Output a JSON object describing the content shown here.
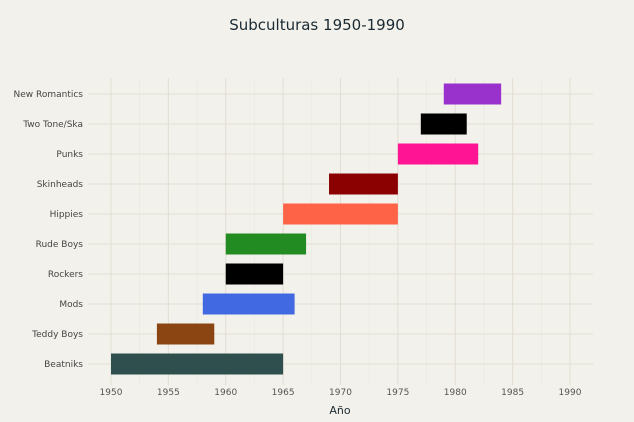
{
  "chart_data": {
    "type": "bar",
    "orientation": "horizontal-range",
    "title": "Subculturas 1950-1990",
    "xlabel": "Año",
    "ylabel": "",
    "xlim": [
      1948,
      1992
    ],
    "xticks": [
      1950,
      1955,
      1960,
      1965,
      1970,
      1975,
      1980,
      1985,
      1990
    ],
    "grid": true,
    "legend": "none",
    "series": [
      {
        "name": "Beatniks",
        "start": 1950,
        "end": 1965,
        "color": "#2f4f4f"
      },
      {
        "name": "Teddy Boys",
        "start": 1954,
        "end": 1959,
        "color": "#8b4513"
      },
      {
        "name": "Mods",
        "start": 1958,
        "end": 1966,
        "color": "#4169e1"
      },
      {
        "name": "Rockers",
        "start": 1960,
        "end": 1965,
        "color": "#000000"
      },
      {
        "name": "Rude Boys",
        "start": 1960,
        "end": 1967,
        "color": "#228b22"
      },
      {
        "name": "Hippies",
        "start": 1965,
        "end": 1975,
        "color": "#ff6347"
      },
      {
        "name": "Skinheads",
        "start": 1969,
        "end": 1975,
        "color": "#8b0000"
      },
      {
        "name": "Punks",
        "start": 1975,
        "end": 1982,
        "color": "#ff1493"
      },
      {
        "name": "Two Tone/Ska",
        "start": 1977,
        "end": 1981,
        "color": "#000000"
      },
      {
        "name": "New Romantics",
        "start": 1979,
        "end": 1984,
        "color": "#9932cc"
      }
    ]
  }
}
